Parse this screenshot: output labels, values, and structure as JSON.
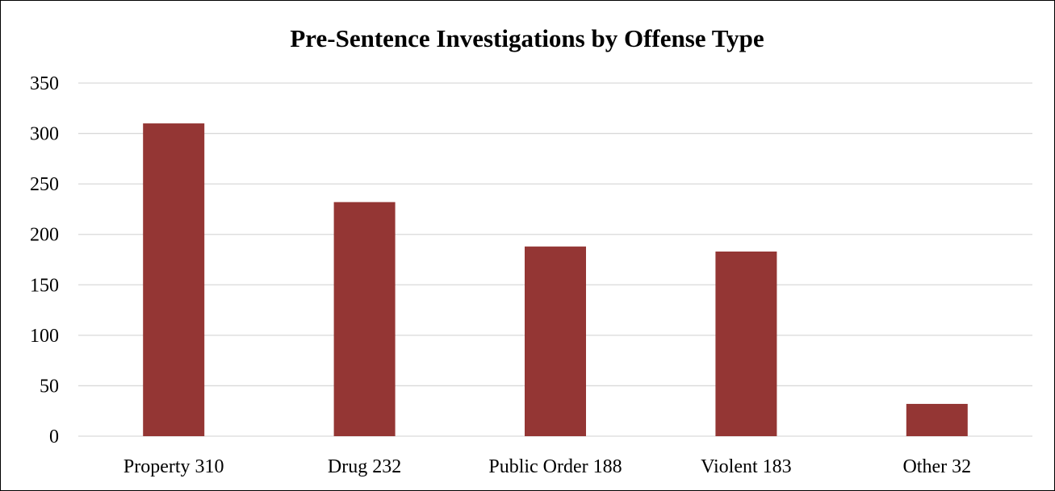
{
  "chart_data": {
    "type": "bar",
    "title": "Pre-Sentence Investigations by Offense Type",
    "xlabel": "",
    "ylabel": "",
    "categories": [
      "Property 310",
      "Drug 232",
      "Public Order 188",
      "Violent 183",
      "Other 32"
    ],
    "values": [
      310,
      232,
      188,
      183,
      32
    ],
    "ylim": [
      0,
      350
    ],
    "yticks": [
      "0",
      "50",
      "100",
      "150",
      "200",
      "250",
      "300",
      "350"
    ],
    "grid": true,
    "legend": "none",
    "bar_color": "#943634"
  }
}
